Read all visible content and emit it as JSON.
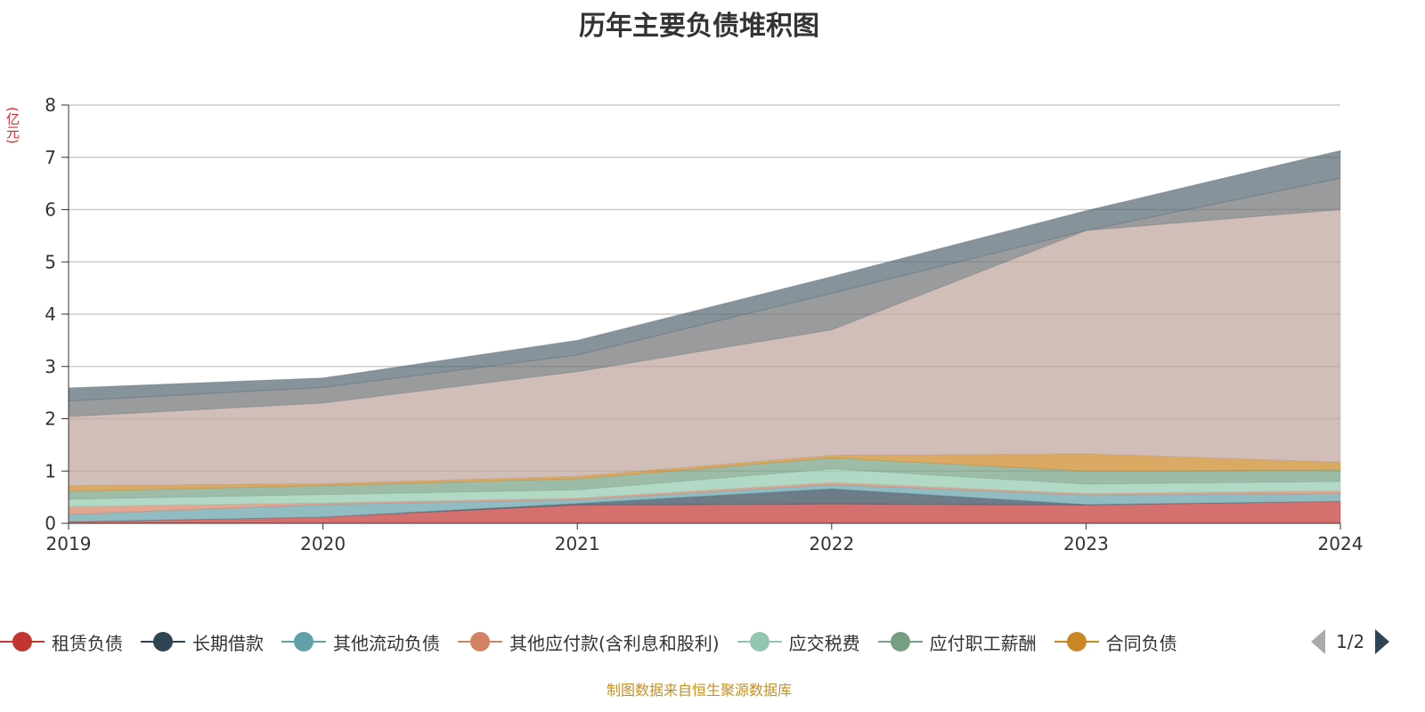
{
  "title": "历年主要负债堆积图",
  "unit": "(亿元)",
  "footer": "制图数据来自恒生聚源数据库",
  "legend_page": "1/2",
  "chart_data": {
    "type": "area",
    "stacked": true,
    "title": "历年主要负债堆积图",
    "ylabel": "(亿元)",
    "ylim": [
      0,
      8
    ],
    "yticks": [
      "0",
      "1",
      "2",
      "3",
      "4",
      "5",
      "6",
      "7",
      "8"
    ],
    "categories": [
      "2019",
      "2020",
      "2021",
      "2022",
      "2023",
      "2024"
    ],
    "grid": true,
    "legend_placement": "bottom",
    "series": [
      {
        "name": "租赁负债",
        "color": "#c23531",
        "values": [
          0.03,
          0.12,
          0.35,
          0.37,
          0.35,
          0.42
        ]
      },
      {
        "name": "长期借款",
        "color": "#2f4554",
        "values": [
          0,
          0,
          0.03,
          0.29,
          0.01,
          0
        ]
      },
      {
        "name": "其他流动负债",
        "color": "#61a0a8",
        "values": [
          0.14,
          0.24,
          0.07,
          0.08,
          0.18,
          0.15
        ]
      },
      {
        "name": "其他应付款(含利息和股利)",
        "color": "#d48265",
        "values": [
          0.15,
          0.03,
          0.03,
          0.04,
          0.03,
          0.05
        ]
      },
      {
        "name": "应交税费",
        "color": "#91c7ae",
        "values": [
          0.14,
          0.16,
          0.16,
          0.26,
          0.18,
          0.18
        ]
      },
      {
        "name": "应付职工薪酬",
        "color": "#749f83",
        "values": [
          0.15,
          0.17,
          0.21,
          0.21,
          0.25,
          0.22
        ]
      },
      {
        "name": "合同负债",
        "color": "#ca8622",
        "values": [
          0.11,
          0.04,
          0.05,
          0.05,
          0.33,
          0.15
        ]
      },
      {
        "color": "#bda29a",
        "values": [
          1.32,
          1.54,
          2.0,
          2.4,
          4.27,
          4.83
        ]
      },
      {
        "color": "#6e7074",
        "values": [
          0.3,
          0.3,
          0.32,
          0.7,
          0,
          0.6
        ]
      },
      {
        "color": "#546570",
        "values": [
          0.25,
          0.18,
          0.28,
          0.32,
          0.38,
          0.53
        ]
      }
    ]
  }
}
